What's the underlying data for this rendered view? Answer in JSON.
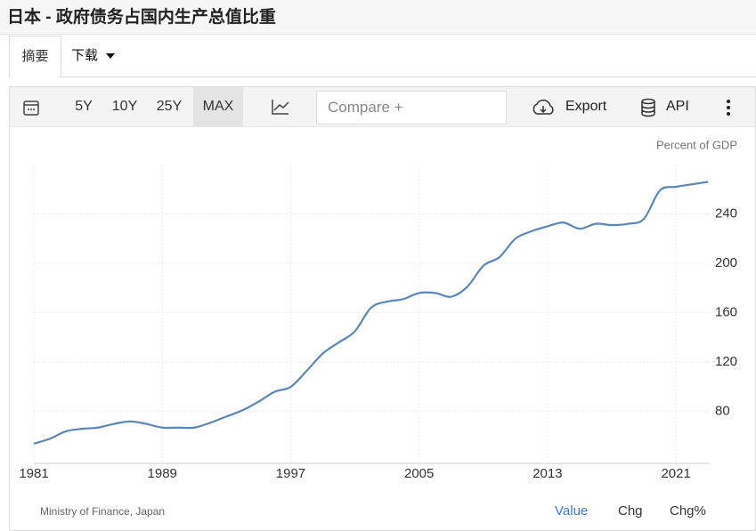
{
  "header": {
    "title": "日本 - 政府债务占国内生产总值比重"
  },
  "tabs": [
    "摘要",
    "下载"
  ],
  "toolbar": {
    "ranges": [
      "5Y",
      "10Y",
      "25Y",
      "MAX"
    ],
    "compare": "Compare +",
    "export": "Export",
    "api": "API"
  },
  "chart_data": {
    "type": "line",
    "y_label": "Percent of GDP",
    "color": "#5b87b8",
    "grid": true,
    "x": [
      1981,
      1982,
      1983,
      1984,
      1985,
      1986,
      1987,
      1988,
      1989,
      1990,
      1991,
      1992,
      1993,
      1994,
      1995,
      1996,
      1997,
      1998,
      1999,
      2000,
      2001,
      2002,
      2003,
      2004,
      2005,
      2006,
      2007,
      2008,
      2009,
      2010,
      2011,
      2012,
      2013,
      2014,
      2015,
      2016,
      2017,
      2018,
      2019,
      2020,
      2021,
      2022,
      2023
    ],
    "values": [
      54,
      58,
      64,
      66,
      67,
      70,
      72,
      70,
      67,
      67,
      67,
      71,
      76,
      81,
      88,
      96,
      100,
      113,
      127,
      136,
      145,
      164,
      169,
      171,
      176,
      176,
      173,
      181,
      198,
      205,
      220,
      226,
      230,
      233,
      228,
      232,
      231,
      232,
      236,
      259,
      262,
      264,
      266
    ],
    "xlim": [
      1981,
      2023.1
    ],
    "ylim": [
      38,
      280
    ],
    "xticks": [
      1981,
      1989,
      1997,
      2005,
      2013,
      2021
    ],
    "yticks": [
      80,
      120,
      160,
      200,
      240
    ]
  },
  "footer": {
    "source": "Ministry of Finance, Japan",
    "views": [
      "Value",
      "Chg",
      "Chg%"
    ]
  }
}
